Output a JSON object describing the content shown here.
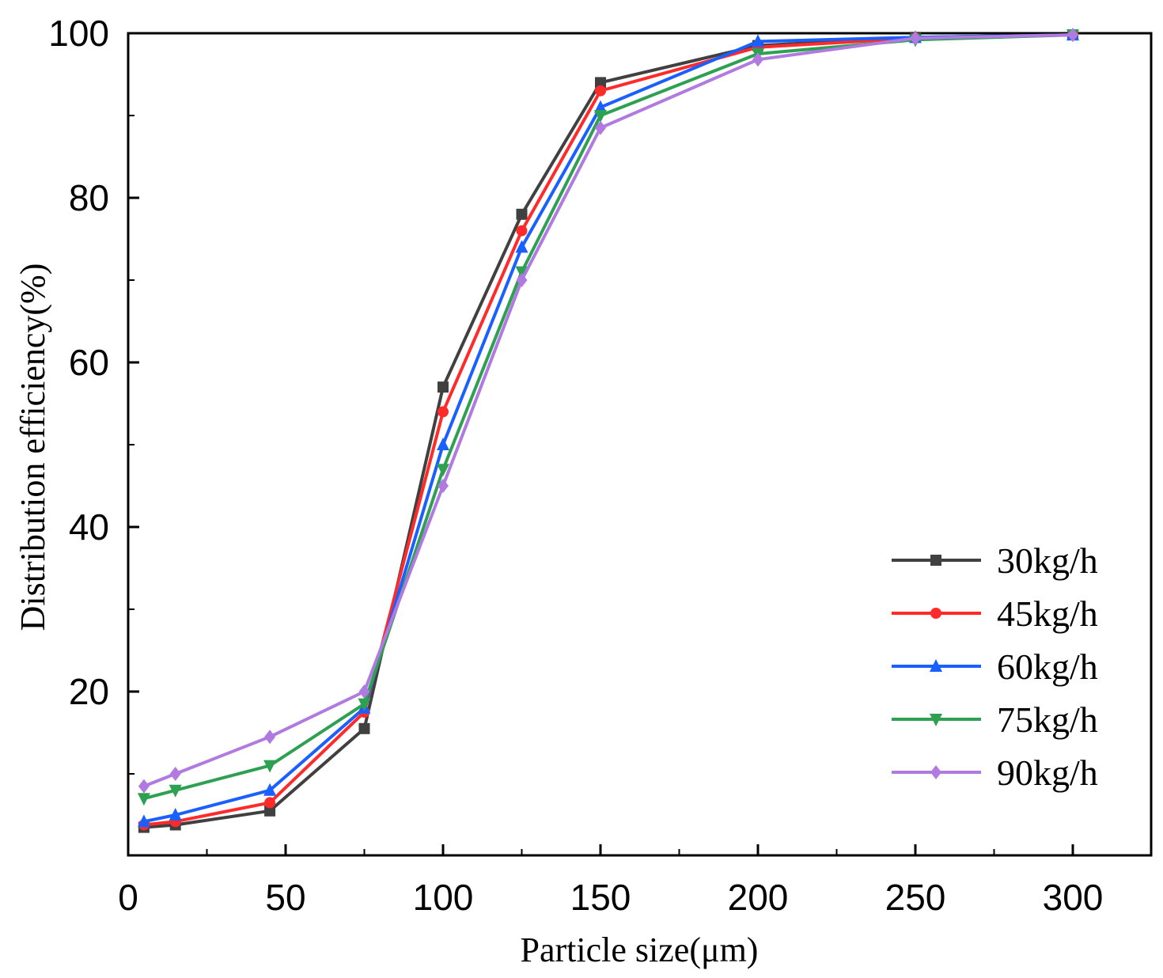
{
  "chart_data": {
    "type": "line",
    "title": "",
    "xlabel": "Particle size(μm)",
    "ylabel": "Distribution efficiency(%)",
    "xlim": [
      0,
      325
    ],
    "ylim": [
      0,
      100
    ],
    "y_visible_min": 0,
    "xticks": [
      0,
      50,
      100,
      150,
      200,
      250,
      300
    ],
    "yticks": [
      20,
      40,
      60,
      80,
      100
    ],
    "xtick_labels": [
      "0",
      "50",
      "100",
      "150",
      "200",
      "250",
      "300"
    ],
    "ytick_labels": [
      "20",
      "40",
      "60",
      "80",
      "100"
    ],
    "grid": false,
    "legend_position": "bottom-right",
    "x": [
      5,
      15,
      45,
      75,
      100,
      125,
      150,
      200,
      250,
      300
    ],
    "series": [
      {
        "name": "30kg/h",
        "color": "#404040",
        "marker": "square",
        "values": [
          3.5,
          3.8,
          5.5,
          15.5,
          57,
          78,
          94,
          98.5,
          99.5,
          99.8
        ]
      },
      {
        "name": "45kg/h",
        "color": "#ff2b2b",
        "marker": "circle",
        "values": [
          3.8,
          4.2,
          6.5,
          17.5,
          54,
          76,
          93,
          98.3,
          99.4,
          99.8
        ]
      },
      {
        "name": "60kg/h",
        "color": "#1a5fff",
        "marker": "triangle-up",
        "values": [
          4.2,
          5,
          8,
          18,
          50,
          74,
          91,
          99,
          99.5,
          99.8
        ]
      },
      {
        "name": "75kg/h",
        "color": "#2ea052",
        "marker": "triangle-down",
        "values": [
          7,
          8,
          11,
          18.5,
          47,
          71,
          90,
          97.5,
          99.2,
          99.8
        ]
      },
      {
        "name": "90kg/h",
        "color": "#b07ae0",
        "marker": "diamond",
        "values": [
          8.5,
          10,
          14.5,
          20,
          45,
          70,
          88.5,
          96.8,
          99.4,
          99.8
        ]
      }
    ]
  }
}
